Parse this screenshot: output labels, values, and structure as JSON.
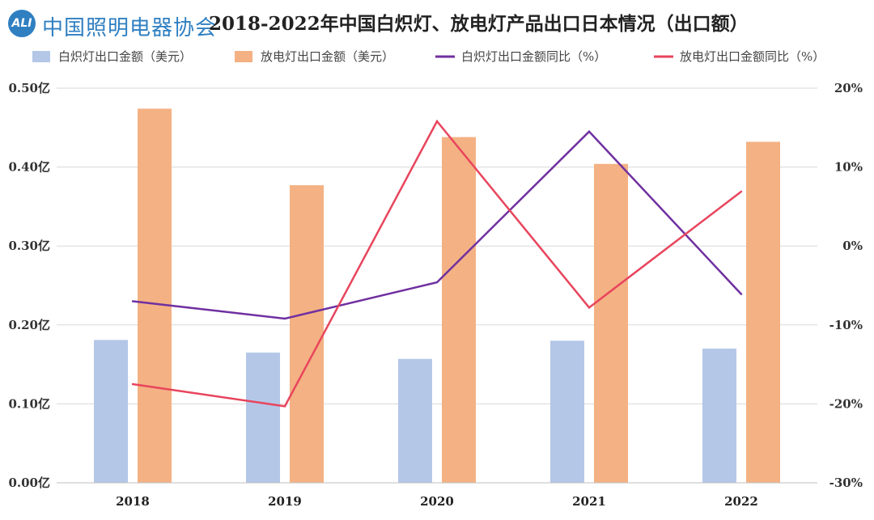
{
  "header": {
    "logo_mark": "ALI",
    "logo_text": "中国照明电器协会",
    "title": "2018-2022年中国白炽灯、放电灯产品出口日本情况（出口额）"
  },
  "colors": {
    "incandescent_bar": "#b4c7e7",
    "discharge_bar": "#f4b183",
    "incandescent_line": "#7030a0",
    "discharge_line": "#e8455d",
    "grid": "#d9d9d9"
  },
  "chart_data": {
    "type": "bar",
    "categories": [
      "2018",
      "2019",
      "2020",
      "2021",
      "2022"
    ],
    "series": [
      {
        "name": "白炽灯出口金额（美元）",
        "kind": "bar",
        "axis": "left",
        "values": [
          0.181,
          0.165,
          0.157,
          0.18,
          0.17
        ]
      },
      {
        "name": "放电灯出口金额（美元）",
        "kind": "bar",
        "axis": "left",
        "values": [
          0.474,
          0.377,
          0.438,
          0.404,
          0.432
        ]
      },
      {
        "name": "白炽灯出口金额同比（%）",
        "kind": "line",
        "axis": "right",
        "values": [
          -7.0,
          -9.2,
          -4.6,
          14.5,
          -6.1
        ]
      },
      {
        "name": "放电灯出口金额同比（%）",
        "kind": "line",
        "axis": "right",
        "values": [
          -17.5,
          -20.3,
          15.8,
          -7.8,
          6.9
        ]
      }
    ],
    "left_axis": {
      "ylim": [
        0,
        0.5
      ],
      "ticks": [
        "0.00亿",
        "0.10亿",
        "0.20亿",
        "0.30亿",
        "0.40亿",
        "0.50亿"
      ]
    },
    "right_axis": {
      "ylim": [
        -30,
        20
      ],
      "ticks": [
        "-30%",
        "-20%",
        "-10%",
        "0%",
        "10%",
        "20%"
      ]
    },
    "grid": true,
    "legend_position": "top"
  }
}
